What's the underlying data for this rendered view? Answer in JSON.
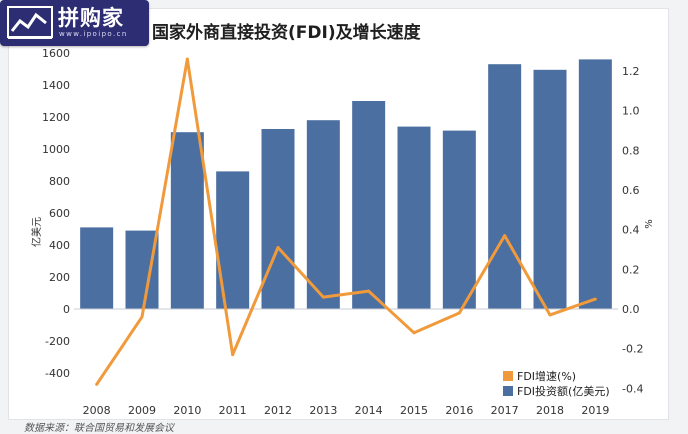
{
  "logo": {
    "name": "拼购家",
    "url": "www.ipoipo.cn"
  },
  "source_text": "数据来源：联合国贸易和发展会议",
  "colors": {
    "bar": "#4a6fa0",
    "line": "#f19a3c",
    "logo_bg": "#2c2d72"
  },
  "chart_data": {
    "type": "bar",
    "title": "国家外商直接投资(FDI)及增长速度",
    "categories": [
      "2008",
      "2009",
      "2010",
      "2011",
      "2012",
      "2013",
      "2014",
      "2015",
      "2016",
      "2017",
      "2018",
      "2019"
    ],
    "ylabel": "亿美元",
    "y2label": "%",
    "ylim": [
      -500,
      1600
    ],
    "y2lim": [
      -0.45,
      1.35
    ],
    "yticks": [
      "-400",
      "-200",
      "0",
      "200",
      "400",
      "600",
      "800",
      "1000",
      "1200",
      "1400",
      "1600"
    ],
    "y2ticks": [
      "-0.4",
      "-0.2",
      "0.0",
      "0.2",
      "0.4",
      "0.6",
      "0.8",
      "1.0",
      "1.2"
    ],
    "grid": false,
    "legend_position": "bottom-right",
    "series": [
      {
        "name": "FDI投资额(亿美元)",
        "type": "bar",
        "axis": "left",
        "values": [
          510,
          490,
          1105,
          860,
          1125,
          1180,
          1300,
          1140,
          1115,
          1530,
          1495,
          1560
        ]
      },
      {
        "name": "FDI增速(%)",
        "type": "line",
        "axis": "right",
        "values": [
          -0.38,
          -0.04,
          1.26,
          -0.23,
          0.31,
          0.06,
          0.09,
          -0.12,
          -0.02,
          0.37,
          -0.03,
          0.05
        ]
      }
    ]
  }
}
